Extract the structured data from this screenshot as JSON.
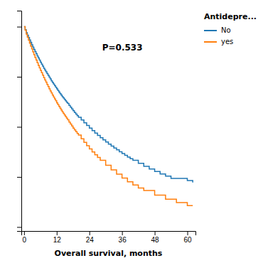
{
  "chart_data": {
    "type": "step",
    "xlabel": "Overall survival, months",
    "xlim": [
      -1,
      63
    ],
    "ylim": [
      -0.02,
      1.08
    ],
    "xticks": [
      0,
      12,
      24,
      36,
      48,
      60
    ],
    "yticks": [
      0.0,
      0.25,
      0.5,
      0.75,
      1.0
    ],
    "tick_labels": "x",
    "grid": false,
    "legend": "right",
    "legend_title": "Antidepre...",
    "annotations": [
      "P=0.533"
    ],
    "series": [
      {
        "name": "No",
        "x": [
          0,
          0.4,
          0.8,
          1.2,
          1.6,
          2.0,
          2.4,
          2.8,
          3.2,
          3.6,
          4.0,
          4.4,
          4.8,
          5.2,
          5.6,
          6.0,
          6.4,
          6.8,
          7.2,
          7.6,
          8.0,
          8.4,
          8.8,
          9.2,
          9.6,
          10.0,
          10.4,
          10.8,
          11.2,
          11.6,
          12.0,
          12.4,
          12.8,
          13.2,
          13.6,
          14.0,
          14.4,
          14.8,
          15.2,
          15.6,
          16.0,
          16.5,
          17.0,
          17.5,
          18.0,
          18.5,
          19.0,
          19.5,
          20.0,
          21.0,
          22.0,
          23.0,
          24.0,
          25.0,
          26.0,
          27.0,
          28.0,
          29.0,
          30.0,
          31.0,
          32.0,
          33.0,
          34.0,
          35.0,
          36.0,
          37.0,
          38.0,
          39.0,
          40.0,
          42.0,
          44.0,
          46.0,
          48.0,
          50.0,
          52.0,
          54.0,
          60.0,
          62.0
        ],
        "values": [
          1.0,
          0.985,
          0.97,
          0.958,
          0.946,
          0.934,
          0.922,
          0.91,
          0.898,
          0.887,
          0.876,
          0.865,
          0.854,
          0.844,
          0.833,
          0.823,
          0.813,
          0.803,
          0.793,
          0.784,
          0.775,
          0.766,
          0.757,
          0.748,
          0.739,
          0.73,
          0.722,
          0.714,
          0.706,
          0.698,
          0.69,
          0.682,
          0.674,
          0.666,
          0.659,
          0.651,
          0.644,
          0.637,
          0.63,
          0.623,
          0.617,
          0.607,
          0.598,
          0.589,
          0.581,
          0.572,
          0.564,
          0.556,
          0.548,
          0.534,
          0.52,
          0.507,
          0.494,
          0.481,
          0.469,
          0.457,
          0.446,
          0.435,
          0.424,
          0.414,
          0.404,
          0.394,
          0.385,
          0.376,
          0.367,
          0.358,
          0.349,
          0.341,
          0.333,
          0.318,
          0.303,
          0.29,
          0.277,
          0.265,
          0.254,
          0.243,
          0.232,
          0.222
        ]
      },
      {
        "name": "yes",
        "x": [
          0,
          0.4,
          0.8,
          1.2,
          1.6,
          2.0,
          2.4,
          2.8,
          3.2,
          3.6,
          4.0,
          4.4,
          4.8,
          5.2,
          5.6,
          6.0,
          6.4,
          6.8,
          7.2,
          7.6,
          8.0,
          8.4,
          8.8,
          9.2,
          9.6,
          10.0,
          10.4,
          10.8,
          11.2,
          11.6,
          12.0,
          12.4,
          12.8,
          13.2,
          13.6,
          14.0,
          14.4,
          14.8,
          15.2,
          15.6,
          16.0,
          16.5,
          17.0,
          17.5,
          18.0,
          18.5,
          19.0,
          19.5,
          20.0,
          21.0,
          22.0,
          23.0,
          24.0,
          25.0,
          26.0,
          27.0,
          28.0,
          30.0,
          32.0,
          34.0,
          36.0,
          38.0,
          40.0,
          42.0,
          44.0,
          48.0,
          52.0,
          56.0,
          60.0,
          62.0
        ],
        "values": [
          1.0,
          0.982,
          0.963,
          0.948,
          0.933,
          0.918,
          0.903,
          0.889,
          0.874,
          0.86,
          0.846,
          0.833,
          0.82,
          0.807,
          0.794,
          0.782,
          0.77,
          0.758,
          0.746,
          0.734,
          0.723,
          0.712,
          0.701,
          0.69,
          0.679,
          0.669,
          0.659,
          0.649,
          0.639,
          0.63,
          0.62,
          0.611,
          0.602,
          0.593,
          0.584,
          0.575,
          0.567,
          0.559,
          0.551,
          0.543,
          0.535,
          0.524,
          0.514,
          0.504,
          0.494,
          0.485,
          0.476,
          0.467,
          0.459,
          0.44,
          0.423,
          0.406,
          0.39,
          0.375,
          0.361,
          0.347,
          0.333,
          0.308,
          0.285,
          0.264,
          0.244,
          0.226,
          0.21,
          0.195,
          0.182,
          0.159,
          0.139,
          0.122,
          0.107,
          0.107
        ]
      }
    ]
  }
}
